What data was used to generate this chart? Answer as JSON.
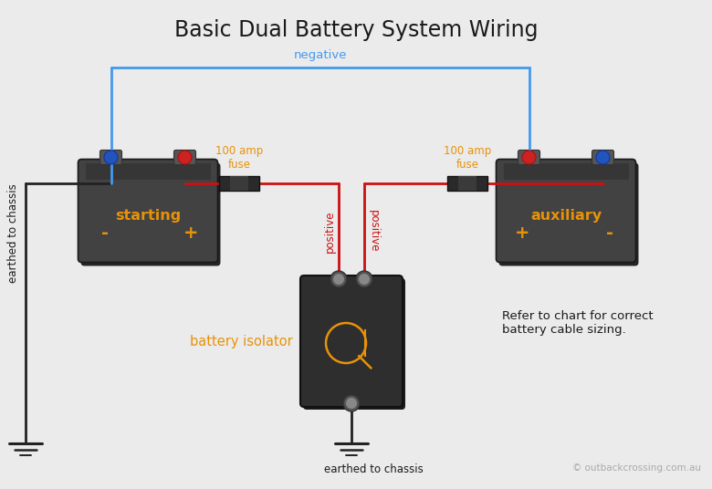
{
  "title": "Basic Dual Battery System Wiring",
  "title_fontsize": 17,
  "bg_color": "#ebebeb",
  "wire_red": "#cc1111",
  "wire_blue": "#4499ee",
  "wire_black": "#222222",
  "text_orange": "#e8920a",
  "text_black": "#1a1a1a",
  "text_gray": "#aaaaaa",
  "battery_body": "#3d3d3d",
  "battery_top": "#4a4a4a",
  "battery_label_start": "starting",
  "battery_label_aux": "auxiliary",
  "fuse_label": "100 amp\nfuse",
  "negative_label": "negative",
  "positive_label": "positive",
  "isolator_label": "battery isolator",
  "earth_label1": "earthed to chassis",
  "earth_label2": "earthed to chassis",
  "refer_text": "Refer to chart for correct\nbattery cable sizing.",
  "copyright": "© outbackcrossing.com.au",
  "lw_wire": 2.0,
  "xlim": [
    0,
    7.8
  ],
  "ylim": [
    0,
    5.36
  ]
}
